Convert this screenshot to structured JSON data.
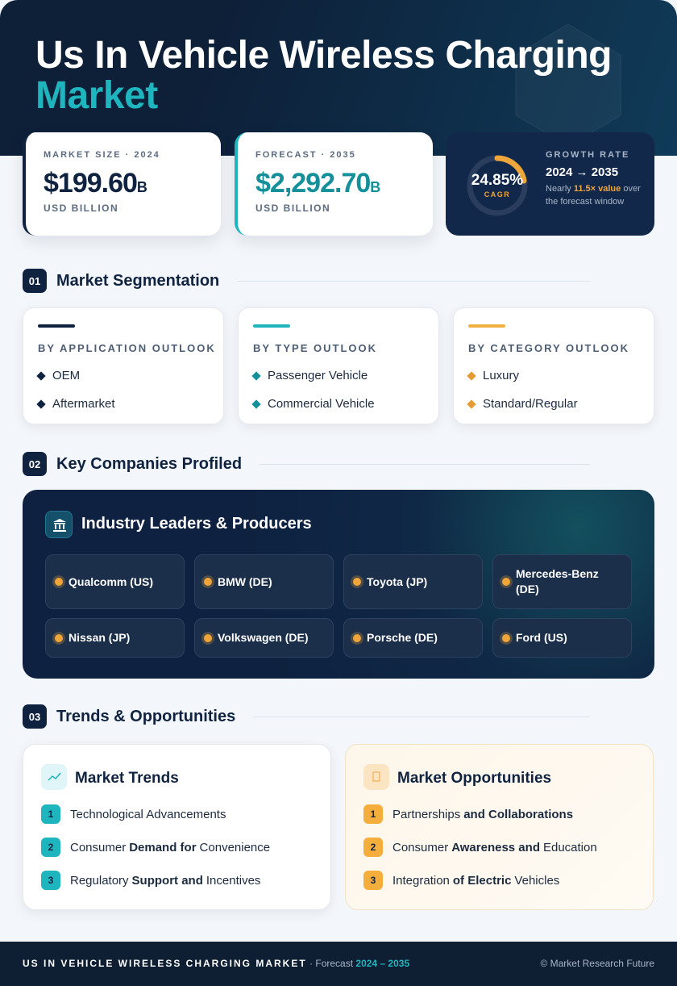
{
  "header": {
    "title_line1": "Us In Vehicle Wireless Charging",
    "title_line2": "Market"
  },
  "stats": [
    {
      "label": "MARKET SIZE · 2024",
      "value": "$199.60",
      "unit": "B",
      "note": "USD BILLION"
    },
    {
      "label": "FORECAST · 2035",
      "value": "$2,292.70",
      "unit": "B",
      "note": "USD BILLION"
    }
  ],
  "growth": {
    "cagr": "24.85%",
    "cagr_label": "CAGR",
    "label": "GROWTH RATE",
    "period": "2024 → 2035",
    "note_pre": "Nearly",
    "note_highlight": "11.5× value",
    "note_post": "over the forecast window"
  },
  "sections": [
    {
      "number": "01",
      "title": "Market Segmentation"
    },
    {
      "number": "02",
      "title": "Key Companies Profiled"
    },
    {
      "number": "03",
      "title": "Trends & Opportunities"
    }
  ],
  "segments": [
    {
      "title": "BY APPLICATION OUTLOOK",
      "items": [
        "OEM",
        "Aftermarket"
      ]
    },
    {
      "title": "BY TYPE OUTLOOK",
      "items": [
        "Passenger Vehicle",
        "Commercial Vehicle"
      ]
    },
    {
      "title": "BY CATEGORY OUTLOOK",
      "items": [
        "Luxury",
        "Standard/Regular"
      ]
    }
  ],
  "companies": {
    "title": "Industry Leaders & Producers",
    "items": [
      "Qualcomm (US)",
      "BMW (DE)",
      "Toyota (JP)",
      "Mercedes-Benz (DE)",
      "Nissan (JP)",
      "Volkswagen (DE)",
      "Porsche (DE)",
      "Ford (US)"
    ]
  },
  "trends": {
    "title": "Market Trends",
    "items": [
      {
        "number": "1",
        "pre": "Technological Advancements"
      },
      {
        "number": "2",
        "pre": "Consumer",
        "bold": "Demand for",
        "post": "Convenience"
      },
      {
        "number": "3",
        "pre": "Regulatory",
        "bold": "Support and",
        "post": "Incentives"
      }
    ]
  },
  "opportunities": {
    "title": "Market Opportunities",
    "items": [
      {
        "number": "1",
        "pre": "Partnerships",
        "bold": "and Collaborations"
      },
      {
        "number": "2",
        "pre": "Consumer",
        "bold": "Awareness and",
        "post": "Education"
      },
      {
        "number": "3",
        "pre": "Integration",
        "bold": "of Electric",
        "post": "Vehicles"
      }
    ]
  },
  "footer": {
    "title": "US IN VEHICLE WIRELESS CHARGING MARKET",
    "forecast_label": "· Forecast",
    "forecast_period": "2024 – 2035",
    "source": "© Market Research Future"
  }
}
